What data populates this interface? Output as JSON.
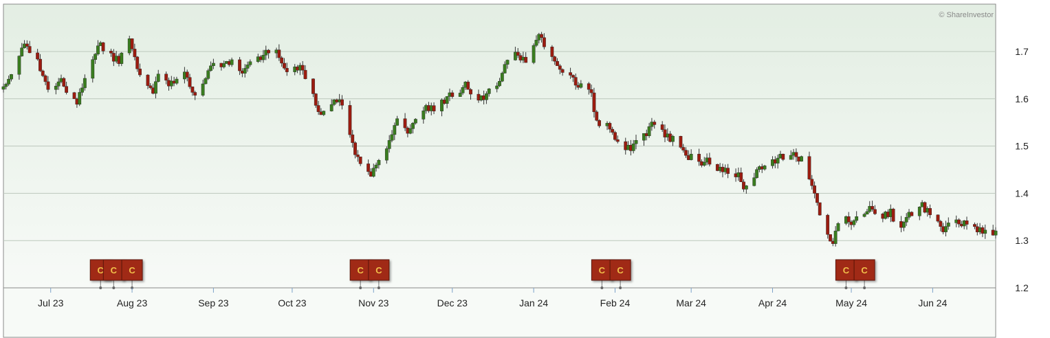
{
  "chart_data": {
    "type": "candlestick",
    "title": "",
    "xlabel": "",
    "ylabel": "",
    "credit": "© ShareInvestor",
    "ylim": [
      1.2,
      1.78
    ],
    "yticks": [
      1.2,
      1.3,
      1.4,
      1.5,
      1.6,
      1.7
    ],
    "ytick_labels": [
      "1.2",
      "1.3",
      "1.4",
      "1.5",
      "1.6",
      "1.7"
    ],
    "xlim": [
      "2023-06-13",
      "2024-06-25"
    ],
    "xticks": [
      {
        "date": "2023-07-01",
        "label": "Jul 23"
      },
      {
        "date": "2023-08-01",
        "label": "Aug 23"
      },
      {
        "date": "2023-09-01",
        "label": "Sep 23"
      },
      {
        "date": "2023-10-01",
        "label": "Oct 23"
      },
      {
        "date": "2023-11-01",
        "label": "Nov 23"
      },
      {
        "date": "2023-12-01",
        "label": "Dec 23"
      },
      {
        "date": "2024-01-01",
        "label": "Jan 24"
      },
      {
        "date": "2024-02-01",
        "label": "Feb 24"
      },
      {
        "date": "2024-03-01",
        "label": "Mar 24"
      },
      {
        "date": "2024-04-01",
        "label": "Apr 24"
      },
      {
        "date": "2024-05-01",
        "label": "May 24"
      },
      {
        "date": "2024-06-01",
        "label": "Jun 24"
      }
    ],
    "grid": true,
    "price_path": [
      [
        "2023-06-13",
        1.62
      ],
      [
        "2023-06-17",
        1.65
      ],
      [
        "2023-06-21",
        1.72
      ],
      [
        "2023-06-26",
        1.68
      ],
      [
        "2023-07-01",
        1.61
      ],
      [
        "2023-07-05",
        1.63
      ],
      [
        "2023-07-09",
        1.6
      ],
      [
        "2023-07-13",
        1.62
      ],
      [
        "2023-07-16",
        1.67
      ],
      [
        "2023-07-19",
        1.71
      ],
      [
        "2023-07-24",
        1.69
      ],
      [
        "2023-07-27",
        1.68
      ],
      [
        "2023-07-31",
        1.72
      ],
      [
        "2023-08-01",
        1.71
      ],
      [
        "2023-08-04",
        1.65
      ],
      [
        "2023-08-07",
        1.62
      ],
      [
        "2023-08-13",
        1.66
      ],
      [
        "2023-08-16",
        1.62
      ],
      [
        "2023-08-21",
        1.65
      ],
      [
        "2023-08-25",
        1.61
      ],
      [
        "2023-09-01",
        1.67
      ],
      [
        "2023-09-08",
        1.68
      ],
      [
        "2023-09-12",
        1.66
      ],
      [
        "2023-09-20",
        1.69
      ],
      [
        "2023-09-24",
        1.71
      ],
      [
        "2023-09-29",
        1.66
      ],
      [
        "2023-10-04",
        1.67
      ],
      [
        "2023-10-08",
        1.62
      ],
      [
        "2023-10-12",
        1.56
      ],
      [
        "2023-10-16",
        1.58
      ],
      [
        "2023-10-19",
        1.6
      ],
      [
        "2023-10-23",
        1.52
      ],
      [
        "2023-10-26",
        1.47
      ],
      [
        "2023-10-30",
        1.44
      ],
      [
        "2023-11-02",
        1.46
      ],
      [
        "2023-11-06",
        1.5
      ],
      [
        "2023-11-10",
        1.56
      ],
      [
        "2023-11-14",
        1.53
      ],
      [
        "2023-11-18",
        1.57
      ],
      [
        "2023-11-23",
        1.58
      ],
      [
        "2023-11-27",
        1.59
      ],
      [
        "2023-12-01",
        1.61
      ],
      [
        "2023-12-06",
        1.62
      ],
      [
        "2023-12-12",
        1.6
      ],
      [
        "2023-12-18",
        1.63
      ],
      [
        "2023-12-20",
        1.66
      ],
      [
        "2023-12-24",
        1.7
      ],
      [
        "2023-12-29",
        1.68
      ],
      [
        "2024-01-03",
        1.73
      ],
      [
        "2024-01-06",
        1.71
      ],
      [
        "2024-01-10",
        1.67
      ],
      [
        "2024-01-14",
        1.65
      ],
      [
        "2024-01-18",
        1.63
      ],
      [
        "2024-01-23",
        1.61
      ],
      [
        "2024-01-25",
        1.55
      ],
      [
        "2024-01-30",
        1.54
      ],
      [
        "2024-02-03",
        1.49
      ],
      [
        "2024-02-08",
        1.51
      ],
      [
        "2024-02-12",
        1.52
      ],
      [
        "2024-02-16",
        1.55
      ],
      [
        "2024-02-20",
        1.52
      ],
      [
        "2024-02-24",
        1.5
      ],
      [
        "2024-03-01",
        1.48
      ],
      [
        "2024-03-05",
        1.46
      ],
      [
        "2024-03-10",
        1.45
      ],
      [
        "2024-03-15",
        1.46
      ],
      [
        "2024-03-20",
        1.42
      ],
      [
        "2024-03-23",
        1.41
      ],
      [
        "2024-03-26",
        1.45
      ],
      [
        "2024-03-30",
        1.46
      ],
      [
        "2024-04-03",
        1.48
      ],
      [
        "2024-04-07",
        1.49
      ],
      [
        "2024-04-11",
        1.48
      ],
      [
        "2024-04-14",
        1.45
      ],
      [
        "2024-04-18",
        1.38
      ],
      [
        "2024-04-21",
        1.32
      ],
      [
        "2024-04-24",
        1.3
      ],
      [
        "2024-04-27",
        1.35
      ],
      [
        "2024-05-04",
        1.34
      ],
      [
        "2024-05-08",
        1.37
      ],
      [
        "2024-05-12",
        1.35
      ],
      [
        "2024-05-16",
        1.36
      ],
      [
        "2024-05-19",
        1.31
      ],
      [
        "2024-05-22",
        1.35
      ],
      [
        "2024-05-28",
        1.37
      ],
      [
        "2024-06-02",
        1.35
      ],
      [
        "2024-06-07",
        1.33
      ],
      [
        "2024-06-11",
        1.34
      ],
      [
        "2024-06-15",
        1.33
      ],
      [
        "2024-06-18",
        1.32
      ],
      [
        "2024-06-22",
        1.32
      ]
    ],
    "candle_colors": {
      "up": "#3a7d1f",
      "down": "#9b1c10",
      "wick": "#333333"
    },
    "event_markers": [
      {
        "date": "2023-07-20",
        "label": "C"
      },
      {
        "date": "2023-07-25",
        "label": "C"
      },
      {
        "date": "2023-08-01",
        "label": "C"
      },
      {
        "date": "2023-10-27",
        "label": "C"
      },
      {
        "date": "2023-11-03",
        "label": "C"
      },
      {
        "date": "2024-01-27",
        "label": "C"
      },
      {
        "date": "2024-02-03",
        "label": "C"
      },
      {
        "date": "2024-04-29",
        "label": "C"
      },
      {
        "date": "2024-05-06",
        "label": "C"
      }
    ],
    "marker_color": "#a02a12",
    "background_top": "#e3eee3",
    "background_bottom": "#f7faf7",
    "grid_color": "#bcc7bc"
  }
}
